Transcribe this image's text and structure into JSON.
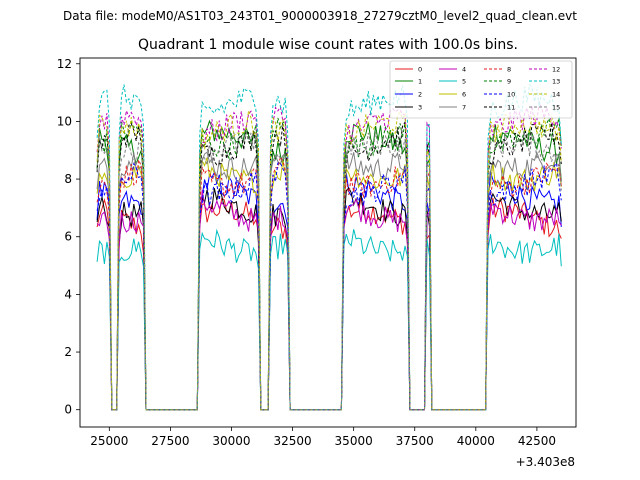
{
  "suptitle": "Data file: modeM0/AS1T03_243T01_9000003918_27279cztM0_level2_quad_clean.evt",
  "chart_data": {
    "type": "line",
    "title": "Quadrant 1 module wise count rates with 100.0s bins.",
    "xlabel": "",
    "ylabel": "",
    "x_offset_label": "+3.403e8",
    "xlim": [
      23800,
      44100
    ],
    "ylim": [
      -0.6,
      12.2
    ],
    "xticks": [
      25000,
      27500,
      30000,
      32500,
      35000,
      37500,
      40000,
      42500
    ],
    "xtick_labels": [
      "25000",
      "27500",
      "30000",
      "32500",
      "35000",
      "37500",
      "40000",
      "42500"
    ],
    "yticks": [
      0,
      2,
      4,
      6,
      8,
      10,
      12
    ],
    "ytick_labels": [
      "0",
      "2",
      "4",
      "6",
      "8",
      "10",
      "12"
    ],
    "legend_position": "upper right",
    "legend_columns": 4,
    "segments": [
      {
        "start": 24500,
        "end": 25000
      },
      {
        "start": 25400,
        "end": 26400
      },
      {
        "start": 28700,
        "end": 31100
      },
      {
        "start": 31600,
        "end": 32300
      },
      {
        "start": 34600,
        "end": 37200
      },
      {
        "start": 38000,
        "end": 38100
      },
      {
        "start": 40500,
        "end": 43500
      }
    ],
    "gap_value": 0,
    "series": [
      {
        "name": "0",
        "color": "#e41a1c",
        "dash": "solid",
        "level": 6.6
      },
      {
        "name": "1",
        "color": "#008000",
        "dash": "solid",
        "level": 9.3
      },
      {
        "name": "2",
        "color": "#0000ff",
        "dash": "solid",
        "level": 7.5
      },
      {
        "name": "3",
        "color": "#000000",
        "dash": "solid",
        "level": 7.1
      },
      {
        "name": "4",
        "color": "#bf00bf",
        "dash": "solid",
        "level": 6.9
      },
      {
        "name": "5",
        "color": "#00bfbf",
        "dash": "solid",
        "level": 5.8
      },
      {
        "name": "6",
        "color": "#bfbf00",
        "dash": "solid",
        "level": 8.3
      },
      {
        "name": "7",
        "color": "#808080",
        "dash": "solid",
        "level": 8.7
      },
      {
        "name": "8",
        "color": "#e41a1c",
        "dash": "dashed",
        "level": 8.1
      },
      {
        "name": "9",
        "color": "#008000",
        "dash": "dashed",
        "level": 9.5
      },
      {
        "name": "10",
        "color": "#0000ff",
        "dash": "dashed",
        "level": 7.8
      },
      {
        "name": "11",
        "color": "#000000",
        "dash": "dashed",
        "level": 9.2
      },
      {
        "name": "12",
        "color": "#bf00bf",
        "dash": "dashed",
        "level": 9.9
      },
      {
        "name": "13",
        "color": "#00bfbf",
        "dash": "dashed",
        "level": 10.5
      },
      {
        "name": "14",
        "color": "#bfbf00",
        "dash": "dashed",
        "level": 9.6
      },
      {
        "name": "15",
        "color": "#808080",
        "dash": "dashed",
        "level": 8.9
      }
    ]
  }
}
